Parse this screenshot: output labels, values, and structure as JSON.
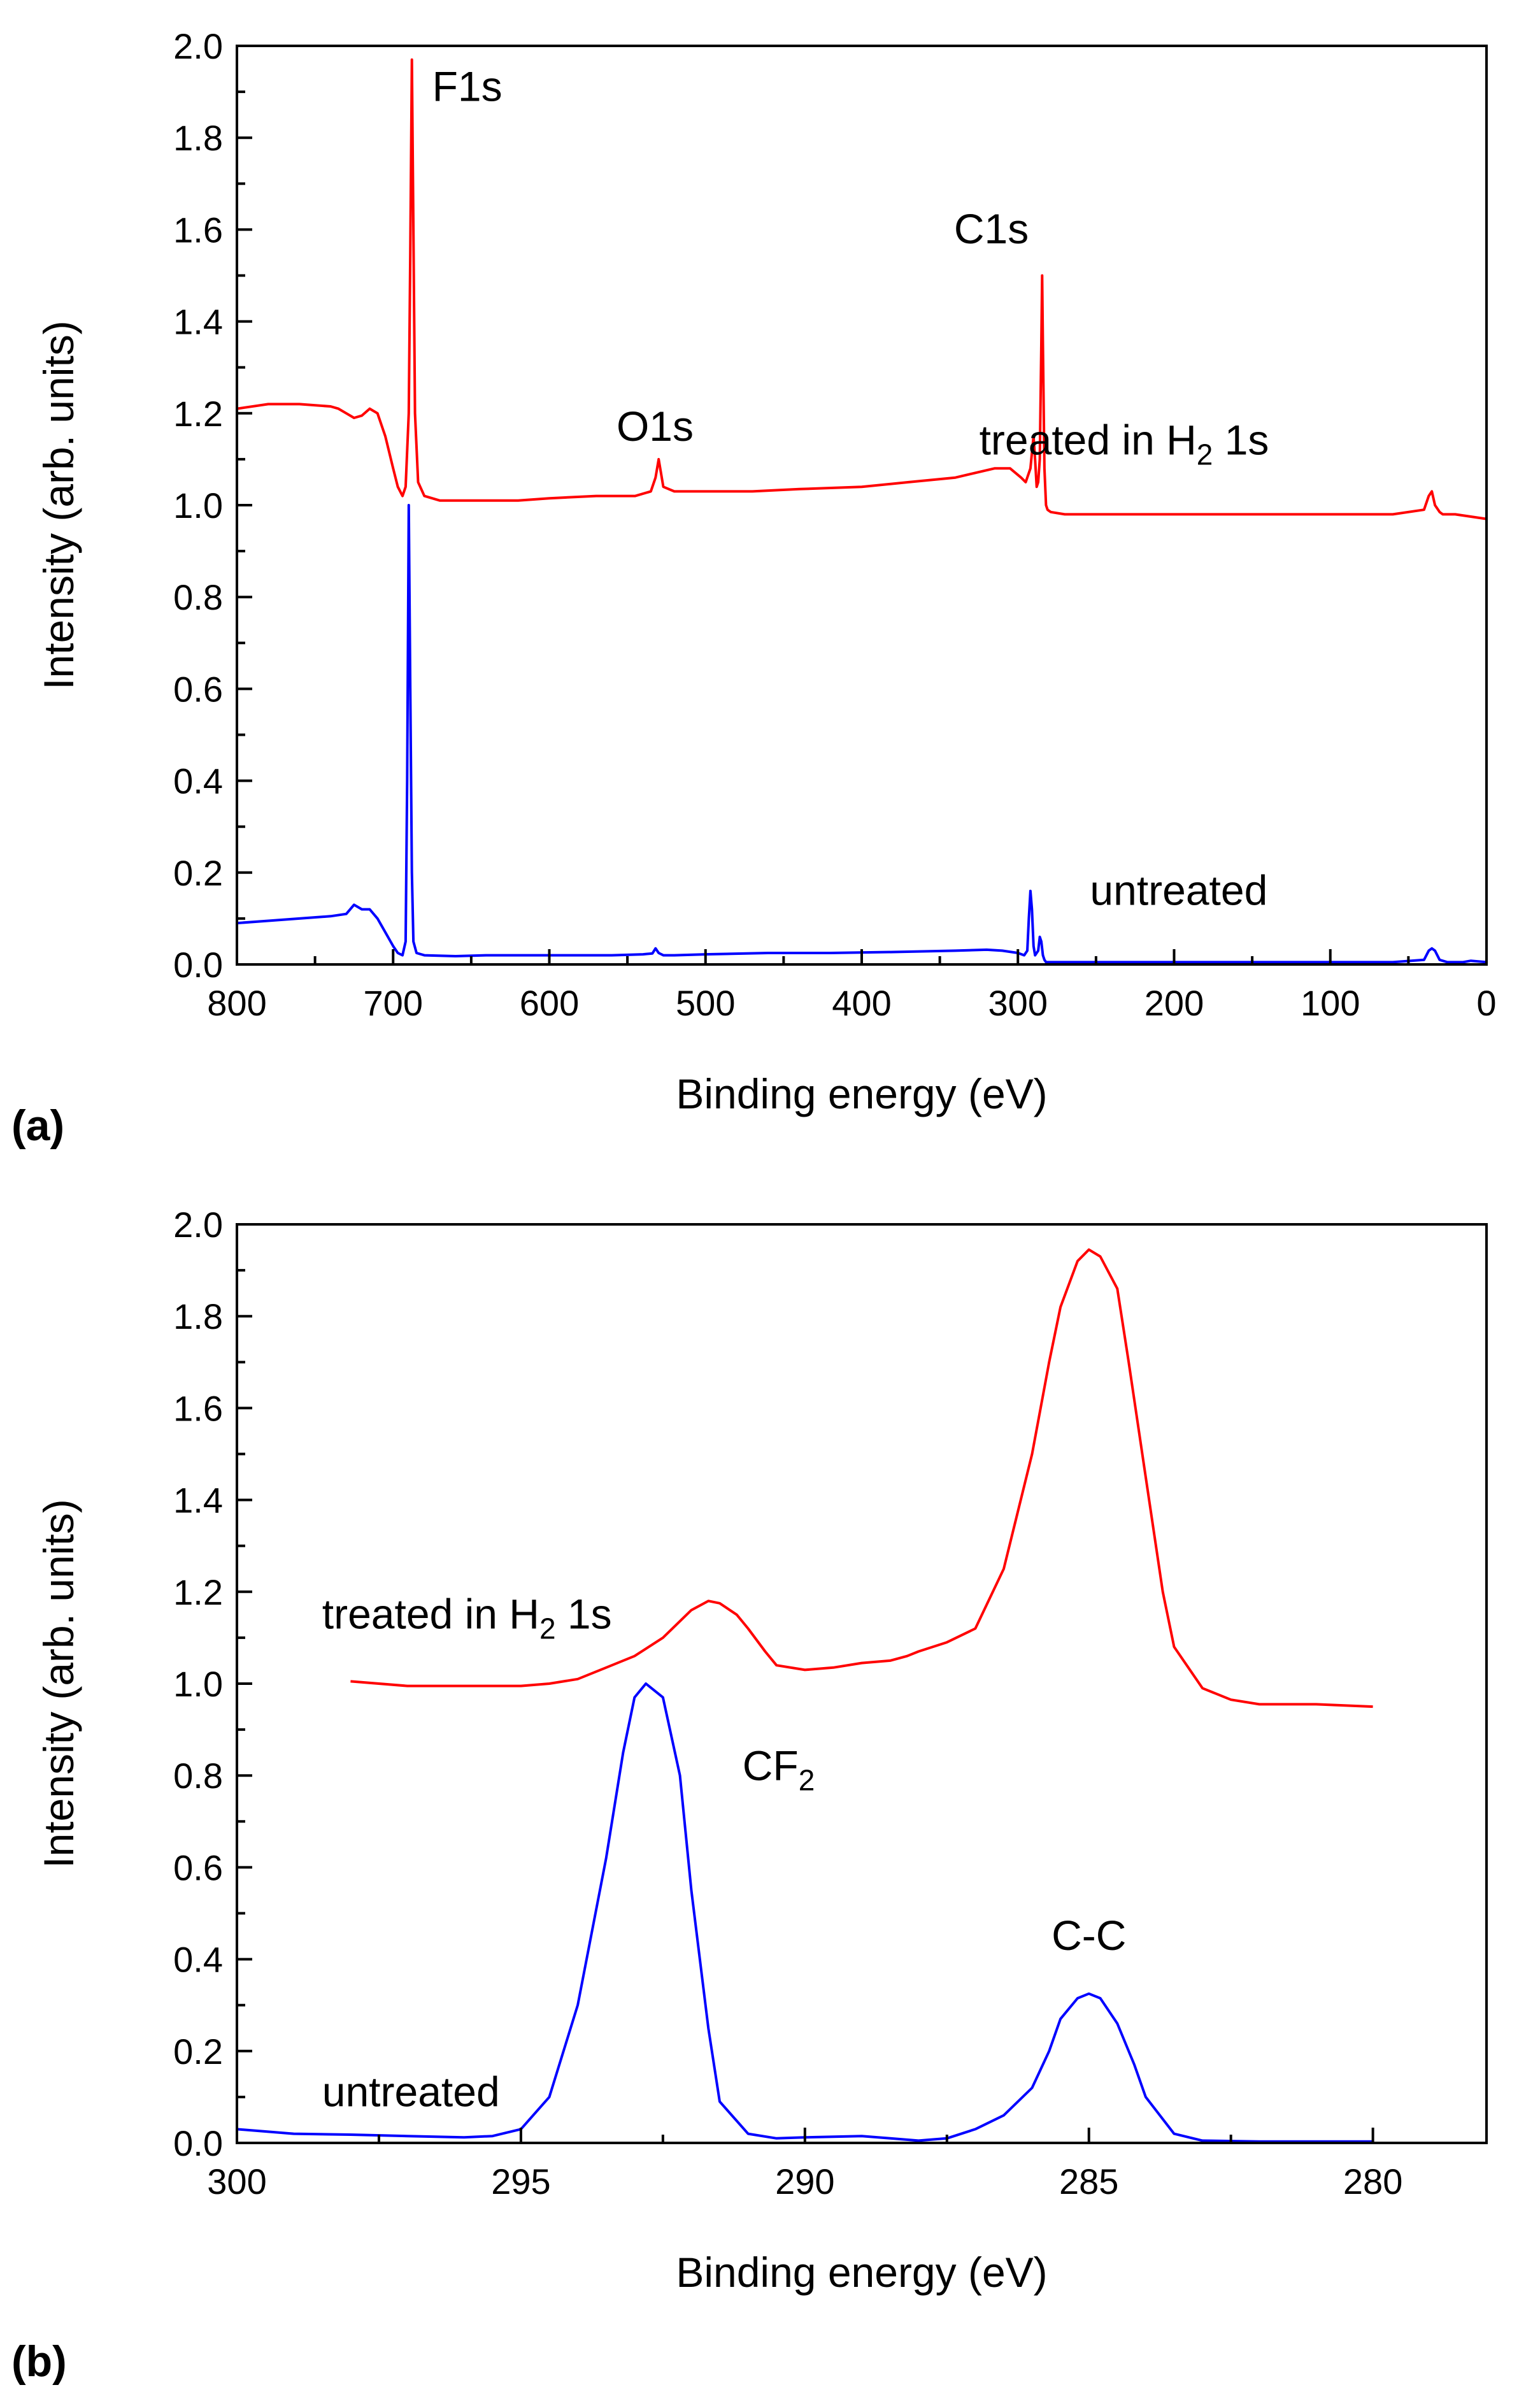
{
  "chart_data": [
    {
      "panel_label": "(a)",
      "type": "line",
      "xlabel": "Binding energy (eV)",
      "ylabel": "Intensity (arb. units)",
      "xlim": [
        800,
        0
      ],
      "ylim": [
        0.0,
        2.0
      ],
      "x_major_ticks": [
        800,
        700,
        600,
        500,
        400,
        300,
        200,
        100,
        0
      ],
      "x_tick_labels": [
        "800",
        "700",
        "600",
        "500",
        "400",
        "300",
        "200",
        "100",
        "0"
      ],
      "y_major_ticks": [
        0.0,
        0.2,
        0.4,
        0.6,
        0.8,
        1.0,
        1.2,
        1.4,
        1.6,
        1.8,
        2.0
      ],
      "y_tick_labels": [
        "0.0",
        "0.2",
        "0.4",
        "0.6",
        "0.8",
        "1.0",
        "1.2",
        "1.4",
        "1.6",
        "1.8",
        "2.0"
      ],
      "grid": false,
      "series": [
        {
          "name": "treated in H2 1s",
          "color": "#ff0000",
          "x": [
            800,
            780,
            760,
            740,
            735,
            730,
            725,
            720,
            715,
            710,
            705,
            700,
            697,
            694,
            692,
            690,
            689,
            688,
            687,
            686,
            684,
            680,
            670,
            650,
            620,
            600,
            570,
            545,
            535,
            532,
            530,
            527,
            520,
            500,
            470,
            440,
            400,
            370,
            340,
            315,
            305,
            298,
            295,
            292,
            290,
            289,
            288,
            287,
            286,
            285,
            284.5,
            284,
            283,
            282,
            281,
            279,
            270,
            250,
            200,
            150,
            100,
            60,
            40,
            37,
            35,
            33,
            30,
            28,
            25,
            20,
            10,
            0
          ],
          "y": [
            1.21,
            1.22,
            1.22,
            1.215,
            1.21,
            1.2,
            1.19,
            1.195,
            1.21,
            1.2,
            1.15,
            1.08,
            1.04,
            1.02,
            1.04,
            1.2,
            1.55,
            1.97,
            1.6,
            1.2,
            1.05,
            1.02,
            1.01,
            1.01,
            1.01,
            1.015,
            1.02,
            1.02,
            1.03,
            1.06,
            1.1,
            1.04,
            1.03,
            1.03,
            1.03,
            1.035,
            1.04,
            1.05,
            1.06,
            1.08,
            1.08,
            1.06,
            1.05,
            1.08,
            1.15,
            1.1,
            1.04,
            1.05,
            1.1,
            1.35,
            1.5,
            1.35,
            1.08,
            1.0,
            0.99,
            0.985,
            0.98,
            0.98,
            0.98,
            0.98,
            0.98,
            0.98,
            0.99,
            1.02,
            1.03,
            1.0,
            0.985,
            0.98,
            0.98,
            0.98,
            0.975,
            0.97
          ]
        },
        {
          "name": "untreated",
          "color": "#0000ff",
          "x": [
            800,
            780,
            760,
            740,
            730,
            725,
            720,
            715,
            710,
            705,
            700,
            697,
            694,
            692,
            691,
            690,
            689,
            688,
            687,
            685,
            680,
            660,
            640,
            600,
            560,
            540,
            534,
            532,
            530,
            527,
            520,
            500,
            460,
            420,
            380,
            340,
            320,
            310,
            300,
            296,
            294,
            293,
            292,
            291,
            290,
            289,
            287,
            286,
            285,
            284,
            283,
            282,
            280,
            260,
            200,
            150,
            100,
            60,
            40,
            37,
            35,
            33,
            30,
            25,
            15,
            10,
            0
          ],
          "y": [
            0.09,
            0.095,
            0.1,
            0.105,
            0.11,
            0.13,
            0.12,
            0.12,
            0.1,
            0.07,
            0.04,
            0.025,
            0.02,
            0.05,
            0.4,
            1.0,
            0.6,
            0.2,
            0.05,
            0.025,
            0.02,
            0.018,
            0.02,
            0.02,
            0.02,
            0.022,
            0.024,
            0.035,
            0.025,
            0.02,
            0.02,
            0.022,
            0.025,
            0.025,
            0.027,
            0.03,
            0.032,
            0.03,
            0.025,
            0.02,
            0.03,
            0.1,
            0.16,
            0.12,
            0.04,
            0.02,
            0.03,
            0.06,
            0.05,
            0.02,
            0.01,
            0.005,
            0.005,
            0.005,
            0.005,
            0.005,
            0.005,
            0.005,
            0.01,
            0.03,
            0.035,
            0.03,
            0.01,
            0.005,
            0.005,
            0.008,
            0.005
          ]
        }
      ],
      "annotations": [
        {
          "text": "F1s",
          "x": 675,
          "y": 1.88
        },
        {
          "text": "O1s",
          "x": 557,
          "y": 1.14
        },
        {
          "text": "C1s",
          "x": 317,
          "y": 1.57
        },
        {
          "text": "treated in H",
          "subscript": "2",
          "suffix": " 1s",
          "x": 232,
          "y": 1.11
        },
        {
          "text": "untreated",
          "x": 197,
          "y": 0.13
        }
      ]
    },
    {
      "panel_label": "(b)",
      "type": "line",
      "xlabel": "Binding energy (eV)",
      "ylabel": "Intensity (arb. units)",
      "xlim": [
        300,
        278
      ],
      "ylim": [
        0.0,
        2.0
      ],
      "x_major_ticks": [
        300,
        295,
        290,
        285,
        280
      ],
      "x_tick_labels": [
        "300",
        "295",
        "290",
        "285",
        "280"
      ],
      "y_major_ticks": [
        0.0,
        0.2,
        0.4,
        0.6,
        0.8,
        1.0,
        1.2,
        1.4,
        1.6,
        1.8,
        2.0
      ],
      "y_tick_labels": [
        "0.0",
        "0.2",
        "0.4",
        "0.6",
        "0.8",
        "1.0",
        "1.2",
        "1.4",
        "1.6",
        "1.8",
        "2.0"
      ],
      "grid": false,
      "series": [
        {
          "name": "treated in H2 1s",
          "color": "#ff0000",
          "x": [
            298,
            297,
            296,
            295,
            294.5,
            294,
            293.5,
            293,
            292.5,
            292,
            291.7,
            291.5,
            291.2,
            291,
            290.7,
            290.5,
            290,
            289.5,
            289,
            288.5,
            288.2,
            288,
            287.5,
            287,
            286.5,
            286,
            285.7,
            285.5,
            285.2,
            285,
            284.8,
            284.5,
            284.3,
            284,
            283.7,
            283.5,
            283,
            282.5,
            282,
            281,
            280
          ],
          "y": [
            1.005,
            0.995,
            0.995,
            0.995,
            1.0,
            1.01,
            1.035,
            1.06,
            1.1,
            1.16,
            1.18,
            1.175,
            1.15,
            1.12,
            1.07,
            1.04,
            1.03,
            1.035,
            1.045,
            1.05,
            1.06,
            1.07,
            1.09,
            1.12,
            1.25,
            1.5,
            1.7,
            1.82,
            1.92,
            1.945,
            1.93,
            1.86,
            1.7,
            1.45,
            1.2,
            1.08,
            0.99,
            0.965,
            0.955,
            0.955,
            0.95
          ]
        },
        {
          "name": "untreated",
          "color": "#0000ff",
          "x": [
            300,
            299.5,
            299,
            298,
            297,
            296,
            295.5,
            295,
            294.5,
            294,
            293.5,
            293.2,
            293,
            292.8,
            292.5,
            292.2,
            292,
            291.7,
            291.5,
            291,
            290.5,
            290,
            289,
            288.5,
            288,
            287.5,
            287,
            286.5,
            286,
            285.7,
            285.5,
            285.2,
            285,
            284.8,
            284.5,
            284.2,
            284,
            283.5,
            283,
            282,
            281,
            280
          ],
          "y": [
            0.03,
            0.025,
            0.02,
            0.018,
            0.015,
            0.012,
            0.015,
            0.03,
            0.1,
            0.3,
            0.62,
            0.85,
            0.97,
            1.0,
            0.97,
            0.8,
            0.55,
            0.25,
            0.09,
            0.02,
            0.01,
            0.012,
            0.015,
            0.01,
            0.005,
            0.01,
            0.03,
            0.06,
            0.12,
            0.2,
            0.27,
            0.315,
            0.325,
            0.315,
            0.26,
            0.17,
            0.1,
            0.02,
            0.005,
            0.003,
            0.003,
            0.003
          ]
        }
      ],
      "annotations": [
        {
          "text": "CF",
          "subscript": "2",
          "x": 291.1,
          "y": 0.79
        },
        {
          "text": "C-C",
          "x": 285.0,
          "y": 0.42
        },
        {
          "text": "treated in H",
          "subscript": "2",
          "suffix": " 1s",
          "x": 298.5,
          "y": 1.12
        },
        {
          "text": "untreated",
          "x": 298.5,
          "y": 0.08
        }
      ]
    }
  ]
}
